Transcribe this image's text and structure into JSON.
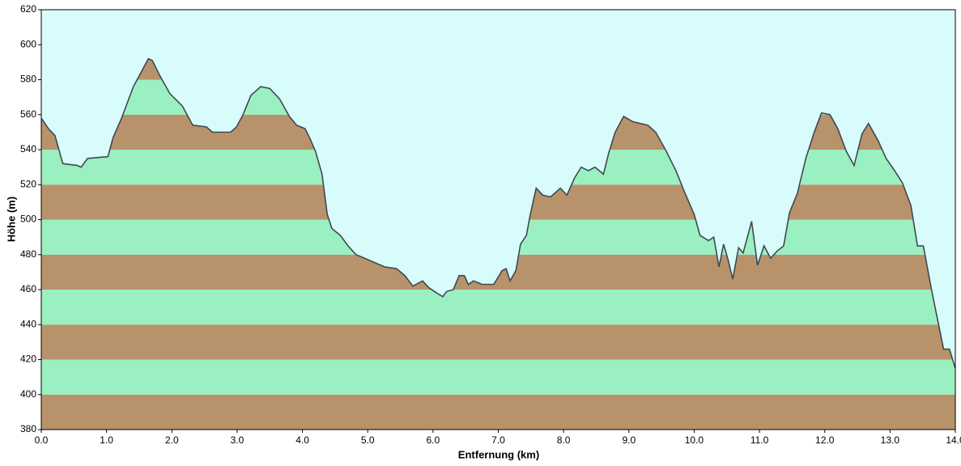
{
  "chart_data": {
    "type": "elevation-profile",
    "x_label": "Entfernung   (km)",
    "y_label": "Höhe  (m)",
    "x": [
      0.0,
      0.11,
      0.21,
      0.33,
      0.55,
      0.61,
      0.71,
      1.02,
      1.1,
      1.23,
      1.41,
      1.54,
      1.64,
      1.7,
      1.82,
      1.97,
      2.16,
      2.32,
      2.53,
      2.62,
      2.9,
      2.99,
      3.09,
      3.21,
      3.36,
      3.5,
      3.65,
      3.8,
      3.91,
      4.04,
      4.12,
      4.2,
      4.3,
      4.38,
      4.45,
      4.58,
      4.7,
      4.82,
      4.95,
      5.07,
      5.26,
      5.44,
      5.57,
      5.69,
      5.84,
      5.94,
      6.06,
      6.15,
      6.21,
      6.31,
      6.4,
      6.48,
      6.54,
      6.62,
      6.75,
      6.93,
      7.06,
      7.12,
      7.18,
      7.27,
      7.34,
      7.43,
      7.49,
      7.58,
      7.68,
      7.8,
      7.95,
      8.05,
      8.17,
      8.27,
      8.38,
      8.48,
      8.61,
      8.69,
      8.79,
      8.92,
      9.06,
      9.29,
      9.41,
      9.56,
      9.72,
      9.85,
      10.0,
      10.09,
      10.22,
      10.3,
      10.38,
      10.45,
      10.52,
      10.59,
      10.68,
      10.75,
      10.88,
      10.97,
      11.07,
      11.17,
      11.27,
      11.37,
      11.46,
      11.58,
      11.71,
      11.83,
      11.95,
      12.08,
      12.2,
      12.33,
      12.45,
      12.57,
      12.67,
      12.82,
      12.94,
      13.07,
      13.19,
      13.32,
      13.42,
      13.51,
      13.63,
      13.7,
      13.82,
      13.91,
      14.0
    ],
    "values": [
      558,
      552,
      548,
      532,
      531,
      530,
      535,
      536,
      547,
      558,
      576,
      585,
      592,
      591,
      582,
      572,
      565,
      554,
      553,
      550,
      550,
      553,
      560,
      571,
      576,
      575,
      569,
      559,
      554,
      552,
      546,
      539,
      526,
      503,
      495,
      491,
      485,
      480,
      478,
      476,
      473,
      472,
      468,
      462,
      465,
      461,
      458,
      456,
      459,
      460,
      468,
      468,
      463,
      465,
      463,
      463,
      471,
      472,
      465,
      471,
      486,
      491,
      503,
      518,
      514,
      513,
      518,
      514,
      524,
      530,
      528,
      530,
      526,
      538,
      550,
      559,
      556,
      554,
      550,
      540,
      528,
      516,
      503,
      491,
      488,
      490,
      473,
      486,
      477,
      466,
      484,
      481,
      499,
      474,
      485,
      478,
      482,
      485,
      504,
      515,
      535,
      549,
      561,
      560,
      552,
      539,
      531,
      549,
      555,
      545,
      535,
      528,
      521,
      508,
      485,
      485,
      461,
      448,
      426,
      426,
      415
    ],
    "line_color": "#404850",
    "sky_color": "#d8fcfc",
    "band_colors": [
      "#b8926a",
      "#9af0c0"
    ],
    "xlim": [
      0,
      14
    ],
    "ylim": [
      380,
      620
    ],
    "xticks": [
      {
        "value": 0,
        "label": "0.0"
      },
      {
        "value": 1,
        "label": "1.0"
      },
      {
        "value": 2,
        "label": "2.0"
      },
      {
        "value": 3,
        "label": "3.0"
      },
      {
        "value": 4,
        "label": "4.0"
      },
      {
        "value": 5,
        "label": "5.0"
      },
      {
        "value": 6,
        "label": "6.0"
      },
      {
        "value": 7,
        "label": "7.0"
      },
      {
        "value": 8,
        "label": "8.0"
      },
      {
        "value": 9,
        "label": "9.0"
      },
      {
        "value": 10,
        "label": "10.0"
      },
      {
        "value": 11,
        "label": "11.0"
      },
      {
        "value": 12,
        "label": "12.0"
      },
      {
        "value": 13,
        "label": "13.0"
      },
      {
        "value": 14,
        "label": "14.0"
      }
    ],
    "yticks": [
      380,
      400,
      420,
      440,
      460,
      480,
      500,
      520,
      540,
      560,
      580,
      600,
      620
    ]
  }
}
